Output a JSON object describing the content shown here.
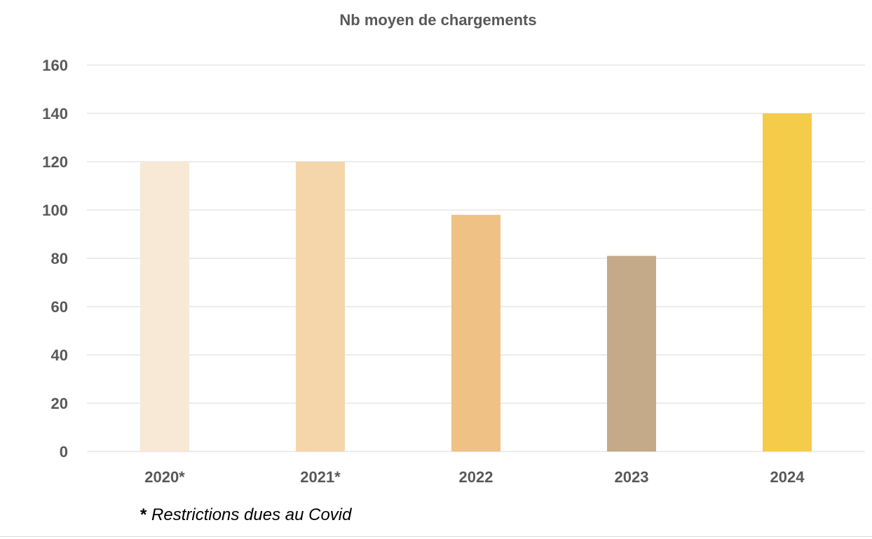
{
  "chart_data": {
    "type": "bar",
    "title": "Nb moyen de chargements",
    "categories": [
      "2020*",
      "2021*",
      "2022",
      "2023",
      "2024"
    ],
    "values": [
      120,
      120,
      98,
      81,
      140
    ],
    "colors": [
      "#F8E8D6",
      "#F5D6AA",
      "#F0C185",
      "#C4AA88",
      "#F5CB4A"
    ],
    "ylim": [
      0,
      160
    ],
    "yticks": [
      0,
      20,
      40,
      60,
      80,
      100,
      120,
      140,
      160
    ],
    "grid": true,
    "gridColor": "#d9d9d9",
    "xlabel": "",
    "ylabel": ""
  },
  "footnote": {
    "marker": "*",
    "text": "Restrictions dues au Covid"
  }
}
